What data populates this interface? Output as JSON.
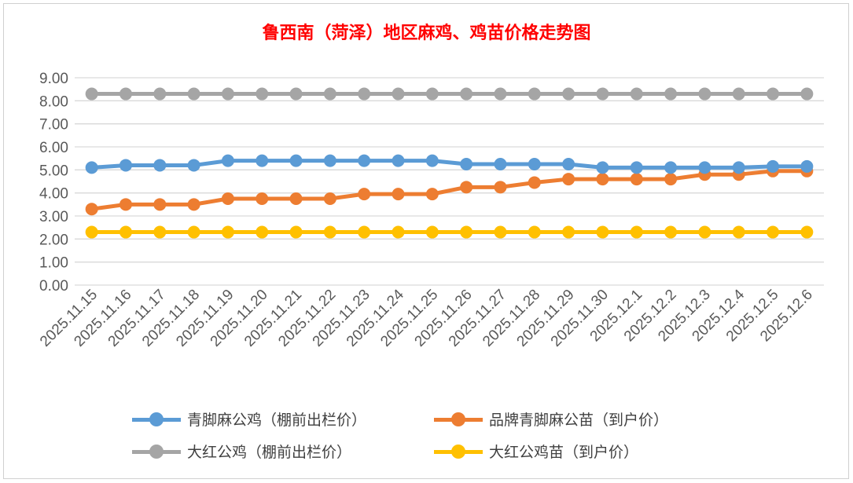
{
  "chart_data": {
    "type": "line",
    "title": "鲁西南（菏泽）地区麻鸡、鸡苗价格走势图",
    "xlabel": "",
    "ylabel": "",
    "ylim": [
      0,
      9
    ],
    "yticks": [
      "0.00",
      "1.00",
      "2.00",
      "3.00",
      "4.00",
      "5.00",
      "6.00",
      "7.00",
      "8.00",
      "9.00"
    ],
    "grid": true,
    "legend_position": "bottom",
    "categories": [
      "2025.11.15",
      "2025.11.16",
      "2025.11.17",
      "2025.11.18",
      "2025.11.19",
      "2025.11.20",
      "2025.11.21",
      "2025.11.22",
      "2025.11.23",
      "2025.11.24",
      "2025.11.25",
      "2025.11.26",
      "2025.11.27",
      "2025.11.28",
      "2025.11.29",
      "2025.11.30",
      "2025.12.1",
      "2025.12.2",
      "2025.12.3",
      "2025.12.4",
      "2025.12.5",
      "2025.12.6"
    ],
    "series": [
      {
        "name": "青脚麻公鸡（棚前出栏价）",
        "color": "#5b9bd5",
        "values": [
          5.1,
          5.2,
          5.2,
          5.2,
          5.4,
          5.4,
          5.4,
          5.4,
          5.4,
          5.4,
          5.4,
          5.25,
          5.25,
          5.25,
          5.25,
          5.1,
          5.1,
          5.1,
          5.1,
          5.1,
          5.15,
          5.15
        ]
      },
      {
        "name": "品牌青脚麻公苗（到户价）",
        "color": "#ed7d31",
        "values": [
          3.3,
          3.5,
          3.5,
          3.5,
          3.75,
          3.75,
          3.75,
          3.75,
          3.95,
          3.95,
          3.95,
          4.25,
          4.25,
          4.45,
          4.6,
          4.6,
          4.6,
          4.6,
          4.8,
          4.8,
          4.95,
          4.95
        ]
      },
      {
        "name": "大红公鸡（棚前出栏价）",
        "color": "#a5a5a5",
        "values": [
          8.3,
          8.3,
          8.3,
          8.3,
          8.3,
          8.3,
          8.3,
          8.3,
          8.3,
          8.3,
          8.3,
          8.3,
          8.3,
          8.3,
          8.3,
          8.3,
          8.3,
          8.3,
          8.3,
          8.3,
          8.3,
          8.3
        ]
      },
      {
        "name": "大红公鸡苗（到户价）",
        "color": "#ffc000",
        "values": [
          2.3,
          2.3,
          2.3,
          2.3,
          2.3,
          2.3,
          2.3,
          2.3,
          2.3,
          2.3,
          2.3,
          2.3,
          2.3,
          2.3,
          2.3,
          2.3,
          2.3,
          2.3,
          2.3,
          2.3,
          2.3,
          2.3
        ]
      }
    ]
  }
}
